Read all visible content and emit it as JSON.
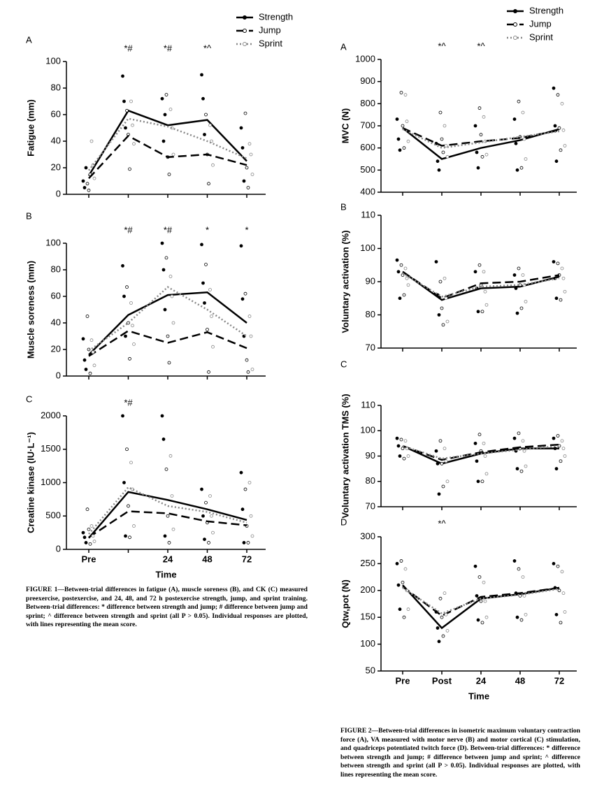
{
  "chart_data": [
    {
      "type": "line",
      "label": "A",
      "ylabel": "Fatigue (mm)",
      "ylim": [
        0,
        100
      ],
      "yticks": [
        0,
        20,
        40,
        60,
        80,
        100
      ],
      "markers": [
        null,
        "*#",
        "*#",
        "*^",
        null
      ],
      "series": [
        {
          "name": "Strength",
          "color": "#000000",
          "line_style": "solid",
          "marker_fill": "filled",
          "values": [
            14,
            63,
            52,
            56,
            25
          ],
          "points": [
            [
              10,
              5,
              20
            ],
            [
              89,
              70,
              50
            ],
            [
              72,
              40,
              60
            ],
            [
              90,
              72,
              45
            ],
            [
              50,
              35,
              10
            ]
          ]
        },
        {
          "name": "Jump",
          "color": "#000000",
          "line_style": "dashed",
          "marker_fill": "open",
          "values": [
            12,
            44,
            28,
            30,
            22
          ],
          "points": [
            [
              8,
              3,
              15
            ],
            [
              63,
              45,
              19
            ],
            [
              75,
              28,
              15
            ],
            [
              60,
              30,
              8
            ],
            [
              61,
              20,
              5
            ]
          ]
        },
        {
          "name": "Sprint",
          "color": "#888888",
          "line_style": "dotted",
          "marker_fill": "open",
          "values": [
            18,
            57,
            51,
            40,
            27
          ],
          "points": [
            [
              40,
              22,
              12
            ],
            [
              70,
              52,
              38
            ],
            [
              64,
              50,
              30
            ],
            [
              52,
              40,
              22
            ],
            [
              38,
              30,
              15
            ]
          ]
        }
      ]
    },
    {
      "type": "line",
      "label": "B",
      "ylabel": "Muscle soreness (mm)",
      "ylim": [
        0,
        100
      ],
      "yticks": [
        0,
        20,
        40,
        60,
        80,
        100
      ],
      "markers": [
        null,
        "*#",
        "*#",
        "*",
        "*"
      ],
      "series": [
        {
          "color": "#000000",
          "line_style": "solid",
          "marker_fill": "filled",
          "values": [
            16,
            46,
            61,
            63,
            40
          ],
          "points": [
            [
              28,
              12,
              5
            ],
            [
              83,
              60,
              30
            ],
            [
              100,
              80,
              50
            ],
            [
              99,
              70,
              55
            ],
            [
              98,
              58,
              30
            ]
          ]
        },
        {
          "color": "#000000",
          "line_style": "dashed",
          "marker_fill": "open",
          "values": [
            15,
            34,
            25,
            33,
            21
          ],
          "points": [
            [
              45,
              20,
              2
            ],
            [
              67,
              40,
              13
            ],
            [
              89,
              30,
              10
            ],
            [
              84,
              35,
              3
            ],
            [
              62,
              12,
              3
            ]
          ]
        },
        {
          "color": "#888888",
          "line_style": "dotted",
          "marker_fill": "open",
          "values": [
            19,
            40,
            67,
            50,
            30
          ],
          "points": [
            [
              27,
              18,
              8
            ],
            [
              55,
              38,
              24
            ],
            [
              75,
              60,
              40
            ],
            [
              65,
              45,
              22
            ],
            [
              45,
              30,
              5
            ]
          ]
        }
      ]
    },
    {
      "type": "line",
      "label": "C",
      "ylabel": "Creatine kinase (IU·L⁻¹)",
      "xlabel": "Time",
      "categories": [
        "Pre",
        null,
        "24",
        "48",
        "72"
      ],
      "ylim": [
        0,
        2000
      ],
      "yticks": [
        0,
        500,
        1000,
        1500,
        2000
      ],
      "markers": [
        null,
        "*#",
        null,
        null,
        null
      ],
      "series": [
        {
          "color": "#000000",
          "line_style": "solid",
          "marker_fill": "filled",
          "values": [
            170,
            860,
            740,
            600,
            440
          ],
          "points": [
            [
              250,
              180,
              100
            ],
            [
              2000,
              1000,
              200
            ],
            [
              2000,
              1650,
              200
            ],
            [
              900,
              500,
              150
            ],
            [
              1150,
              600,
              100
            ]
          ]
        },
        {
          "color": "#000000",
          "line_style": "dashed",
          "marker_fill": "open",
          "values": [
            180,
            570,
            540,
            420,
            360
          ],
          "points": [
            [
              600,
              300,
              80
            ],
            [
              1500,
              650,
              180
            ],
            [
              1200,
              500,
              100
            ],
            [
              700,
              400,
              100
            ],
            [
              900,
              350,
              100
            ]
          ]
        },
        {
          "color": "#888888",
          "line_style": "dotted",
          "marker_fill": "open",
          "values": [
            230,
            930,
            650,
            560,
            400
          ],
          "points": [
            [
              350,
              200,
              120
            ],
            [
              1300,
              900,
              350
            ],
            [
              1400,
              800,
              300
            ],
            [
              800,
              500,
              250
            ],
            [
              1000,
              500,
              200
            ]
          ]
        }
      ]
    },
    {
      "type": "line",
      "label": "A",
      "ylabel": "MVC (N)",
      "ylim": [
        400,
        1000
      ],
      "yticks": [
        400,
        500,
        600,
        700,
        800,
        900,
        1000
      ],
      "markers": [
        null,
        "*^",
        "*^",
        null,
        null
      ],
      "series": [
        {
          "name": "Strength",
          "color": "#000000",
          "line_style": "solid",
          "marker_fill": "filled",
          "values": [
            690,
            550,
            600,
            635,
            685
          ],
          "points": [
            [
              730,
              640,
              590
            ],
            [
              620,
              540,
              500
            ],
            [
              700,
              580,
              510
            ],
            [
              730,
              620,
              500
            ],
            [
              870,
              700,
              540
            ]
          ]
        },
        {
          "name": "Jump",
          "color": "#000000",
          "line_style": "dashed",
          "marker_fill": "open",
          "values": [
            690,
            610,
            630,
            645,
            680
          ],
          "points": [
            [
              850,
              700,
              600
            ],
            [
              760,
              640,
              580
            ],
            [
              780,
              660,
              560
            ],
            [
              810,
              650,
              510
            ],
            [
              840,
              690,
              590
            ]
          ]
        },
        {
          "name": "Sprint",
          "color": "#888888",
          "line_style": "dotted",
          "marker_fill": "open",
          "values": [
            685,
            600,
            625,
            650,
            675
          ],
          "points": [
            [
              840,
              720,
              630
            ],
            [
              700,
              610,
              560
            ],
            [
              740,
              630,
              570
            ],
            [
              760,
              640,
              550
            ],
            [
              800,
              680,
              610
            ]
          ]
        }
      ]
    },
    {
      "type": "line",
      "label": "B",
      "ylabel": "Voluntary activation (%)",
      "ylim": [
        70,
        110
      ],
      "yticks": [
        70,
        80,
        90,
        100,
        110
      ],
      "series": [
        {
          "color": "#000000",
          "line_style": "solid",
          "marker_fill": "filled",
          "values": [
            93,
            84.5,
            88,
            88.5,
            91.5
          ],
          "points": [
            [
              96.5,
              93,
              85
            ],
            [
              96,
              86,
              80
            ],
            [
              93,
              88,
              81
            ],
            [
              92,
              88,
              80.5
            ],
            [
              96,
              91,
              85
            ]
          ]
        },
        {
          "color": "#000000",
          "line_style": "dashed",
          "marker_fill": "open",
          "values": [
            93,
            85,
            89.5,
            90,
            92
          ],
          "points": [
            [
              95,
              92,
              86
            ],
            [
              90,
              82,
              77
            ],
            [
              95,
              89,
              81
            ],
            [
              94,
              89,
              82
            ],
            [
              95.5,
              92,
              84.5
            ]
          ]
        },
        {
          "color": "#888888",
          "line_style": "dotted",
          "marker_fill": "open",
          "values": [
            92.5,
            85.5,
            88.5,
            89,
            91
          ],
          "points": [
            [
              94,
              91,
              89
            ],
            [
              91,
              85,
              78
            ],
            [
              93,
              87,
              83
            ],
            [
              92,
              89,
              84
            ],
            [
              94,
              91,
              87
            ]
          ]
        }
      ]
    },
    {
      "type": "line",
      "label": "C",
      "ylabel": "Voluntary activation TMS (%)",
      "ylim": [
        70,
        110
      ],
      "yticks": [
        70,
        80,
        90,
        100,
        110
      ],
      "series": [
        {
          "color": "#000000",
          "line_style": "solid",
          "marker_fill": "filled",
          "values": [
            94,
            87,
            91,
            93,
            93
          ],
          "points": [
            [
              97,
              94,
              90
            ],
            [
              92,
              87,
              75
            ],
            [
              95,
              88,
              80
            ],
            [
              97,
              92,
              85
            ],
            [
              97,
              93,
              85
            ]
          ]
        },
        {
          "color": "#000000",
          "line_style": "dashed",
          "marker_fill": "open",
          "values": [
            94,
            88.5,
            91.5,
            93.5,
            94.5
          ],
          "points": [
            [
              96.5,
              93,
              89
            ],
            [
              96,
              87,
              78
            ],
            [
              98.5,
              92,
              80
            ],
            [
              99,
              93,
              84
            ],
            [
              98,
              94,
              88
            ]
          ]
        },
        {
          "color": "#888888",
          "line_style": "dotted",
          "marker_fill": "open",
          "values": [
            94,
            89,
            91,
            92.5,
            94
          ],
          "points": [
            [
              96,
              93,
              90
            ],
            [
              93,
              88,
              80
            ],
            [
              95,
              90,
              83
            ],
            [
              96,
              92,
              86
            ],
            [
              96,
              93,
              90
            ]
          ]
        }
      ]
    },
    {
      "type": "line",
      "label": "D",
      "ylabel": "Qtw,pot (N)",
      "xlabel": "Time",
      "categories": [
        "Pre",
        "Post",
        "24",
        "48",
        "72"
      ],
      "ylim": [
        50,
        300
      ],
      "yticks": [
        50,
        100,
        150,
        200,
        250,
        300
      ],
      "markers": [
        null,
        "*^",
        null,
        null,
        null
      ],
      "series": [
        {
          "color": "#000000",
          "line_style": "solid",
          "marker_fill": "filled",
          "values": [
            210,
            130,
            185,
            193,
            205
          ],
          "points": [
            [
              250,
              210,
              165
            ],
            [
              160,
              130,
              105
            ],
            [
              245,
              190,
              145
            ],
            [
              255,
              195,
              150
            ],
            [
              250,
              205,
              155
            ]
          ]
        },
        {
          "color": "#000000",
          "line_style": "dashed",
          "marker_fill": "open",
          "values": [
            207,
            153,
            188,
            195,
            205
          ],
          "points": [
            [
              255,
              215,
              150
            ],
            [
              185,
              150,
              115
            ],
            [
              225,
              180,
              140
            ],
            [
              240,
              190,
              145
            ],
            [
              245,
              200,
              140
            ]
          ]
        },
        {
          "color": "#888888",
          "line_style": "dotted",
          "marker_fill": "open",
          "values": [
            205,
            157,
            185,
            192,
            203
          ],
          "points": [
            [
              240,
              200,
              165
            ],
            [
              195,
              155,
              125
            ],
            [
              215,
              180,
              150
            ],
            [
              225,
              190,
              155
            ],
            [
              235,
              195,
              160
            ]
          ]
        }
      ]
    }
  ],
  "captions": [
    "FIGURE 1—Between-trial differences in fatigue (A), muscle soreness (B), and CK (C) measured preexercise, postexercise, and 24, 48, and 72 h postexercise strength, jump, and sprint training. Between-trial differences: * difference between strength and jump; # difference between jump and sprint; ^ difference between strength and sprint (all P > 0.05). Individual responses are plotted, with lines representing the mean score.",
    "FIGURE 2—Between-trial differences in isometric maximum voluntary contraction force (A), VA measured with motor nerve (B) and motor cortical (C) stimulation, and quadriceps potentiated twitch force (D). Between-trial differences: * difference between strength and jump; # difference between jump and sprint; ^ difference between strength and sprint (all P > 0.05). Individual responses are plotted, with lines representing the mean score."
  ]
}
